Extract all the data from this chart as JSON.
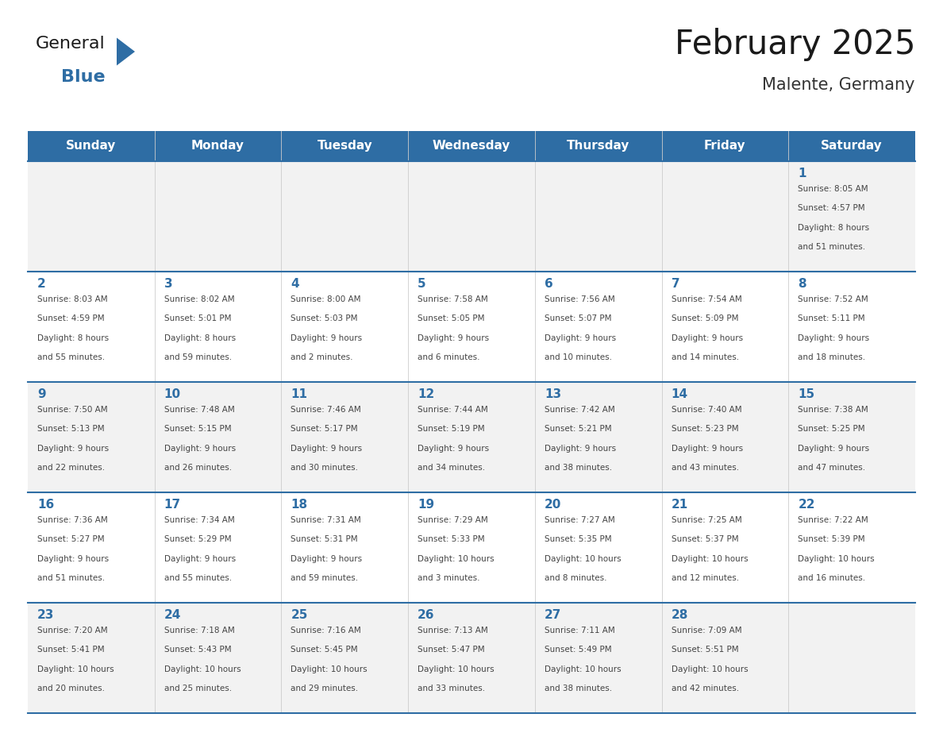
{
  "title": "February 2025",
  "subtitle": "Malente, Germany",
  "header_bg": "#2E6DA4",
  "header_text_color": "#FFFFFF",
  "cell_bg_odd": "#F2F2F2",
  "cell_bg_even": "#FFFFFF",
  "day_number_color": "#2E6DA4",
  "text_color": "#444444",
  "line_color": "#2E6DA4",
  "days_of_week": [
    "Sunday",
    "Monday",
    "Tuesday",
    "Wednesday",
    "Thursday",
    "Friday",
    "Saturday"
  ],
  "calendar": [
    [
      null,
      null,
      null,
      null,
      null,
      null,
      1
    ],
    [
      2,
      3,
      4,
      5,
      6,
      7,
      8
    ],
    [
      9,
      10,
      11,
      12,
      13,
      14,
      15
    ],
    [
      16,
      17,
      18,
      19,
      20,
      21,
      22
    ],
    [
      23,
      24,
      25,
      26,
      27,
      28,
      null
    ]
  ],
  "cell_data": {
    "1": {
      "sunrise": "8:05 AM",
      "sunset": "4:57 PM",
      "daylight": "8 hours and 51 minutes."
    },
    "2": {
      "sunrise": "8:03 AM",
      "sunset": "4:59 PM",
      "daylight": "8 hours and 55 minutes."
    },
    "3": {
      "sunrise": "8:02 AM",
      "sunset": "5:01 PM",
      "daylight": "8 hours and 59 minutes."
    },
    "4": {
      "sunrise": "8:00 AM",
      "sunset": "5:03 PM",
      "daylight": "9 hours and 2 minutes."
    },
    "5": {
      "sunrise": "7:58 AM",
      "sunset": "5:05 PM",
      "daylight": "9 hours and 6 minutes."
    },
    "6": {
      "sunrise": "7:56 AM",
      "sunset": "5:07 PM",
      "daylight": "9 hours and 10 minutes."
    },
    "7": {
      "sunrise": "7:54 AM",
      "sunset": "5:09 PM",
      "daylight": "9 hours and 14 minutes."
    },
    "8": {
      "sunrise": "7:52 AM",
      "sunset": "5:11 PM",
      "daylight": "9 hours and 18 minutes."
    },
    "9": {
      "sunrise": "7:50 AM",
      "sunset": "5:13 PM",
      "daylight": "9 hours and 22 minutes."
    },
    "10": {
      "sunrise": "7:48 AM",
      "sunset": "5:15 PM",
      "daylight": "9 hours and 26 minutes."
    },
    "11": {
      "sunrise": "7:46 AM",
      "sunset": "5:17 PM",
      "daylight": "9 hours and 30 minutes."
    },
    "12": {
      "sunrise": "7:44 AM",
      "sunset": "5:19 PM",
      "daylight": "9 hours and 34 minutes."
    },
    "13": {
      "sunrise": "7:42 AM",
      "sunset": "5:21 PM",
      "daylight": "9 hours and 38 minutes."
    },
    "14": {
      "sunrise": "7:40 AM",
      "sunset": "5:23 PM",
      "daylight": "9 hours and 43 minutes."
    },
    "15": {
      "sunrise": "7:38 AM",
      "sunset": "5:25 PM",
      "daylight": "9 hours and 47 minutes."
    },
    "16": {
      "sunrise": "7:36 AM",
      "sunset": "5:27 PM",
      "daylight": "9 hours and 51 minutes."
    },
    "17": {
      "sunrise": "7:34 AM",
      "sunset": "5:29 PM",
      "daylight": "9 hours and 55 minutes."
    },
    "18": {
      "sunrise": "7:31 AM",
      "sunset": "5:31 PM",
      "daylight": "9 hours and 59 minutes."
    },
    "19": {
      "sunrise": "7:29 AM",
      "sunset": "5:33 PM",
      "daylight": "10 hours and 3 minutes."
    },
    "20": {
      "sunrise": "7:27 AM",
      "sunset": "5:35 PM",
      "daylight": "10 hours and 8 minutes."
    },
    "21": {
      "sunrise": "7:25 AM",
      "sunset": "5:37 PM",
      "daylight": "10 hours and 12 minutes."
    },
    "22": {
      "sunrise": "7:22 AM",
      "sunset": "5:39 PM",
      "daylight": "10 hours and 16 minutes."
    },
    "23": {
      "sunrise": "7:20 AM",
      "sunset": "5:41 PM",
      "daylight": "10 hours and 20 minutes."
    },
    "24": {
      "sunrise": "7:18 AM",
      "sunset": "5:43 PM",
      "daylight": "10 hours and 25 minutes."
    },
    "25": {
      "sunrise": "7:16 AM",
      "sunset": "5:45 PM",
      "daylight": "10 hours and 29 minutes."
    },
    "26": {
      "sunrise": "7:13 AM",
      "sunset": "5:47 PM",
      "daylight": "10 hours and 33 minutes."
    },
    "27": {
      "sunrise": "7:11 AM",
      "sunset": "5:49 PM",
      "daylight": "10 hours and 38 minutes."
    },
    "28": {
      "sunrise": "7:09 AM",
      "sunset": "5:51 PM",
      "daylight": "10 hours and 42 minutes."
    }
  },
  "logo_text_general": "General",
  "logo_text_blue": "Blue",
  "logo_color_general": "#1a1a1a",
  "logo_color_blue": "#2E6DA4",
  "logo_triangle_color": "#2E6DA4",
  "figwidth": 11.88,
  "figheight": 9.18,
  "dpi": 100
}
